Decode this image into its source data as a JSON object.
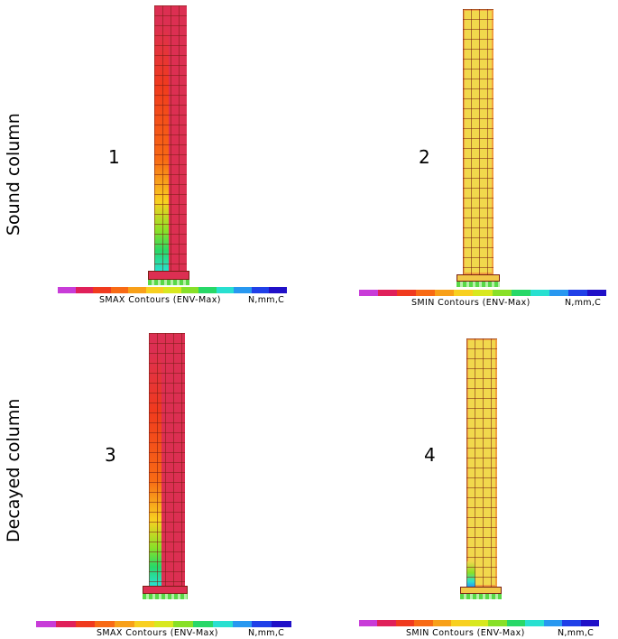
{
  "rows": {
    "sound_label": "Sound column",
    "decayed_label": "Decayed column"
  },
  "panels": [
    {
      "number": "1",
      "legend_title": "SMAX Contours (ENV-Max)",
      "units": "N,mm,C"
    },
    {
      "number": "2",
      "legend_title": "SMIN Contours (ENV-Max)",
      "units": "N,mm,C"
    },
    {
      "number": "3",
      "legend_title": "SMAX Contours (ENV-Max)",
      "units": "N,mm,C"
    },
    {
      "number": "4",
      "legend_title": "SMIN Contours (ENV-Max)",
      "units": "N,mm,C"
    }
  ],
  "colors": {
    "smax_fill": "#dc2f52",
    "smin_fill": "#f1d84c",
    "mesh_line": "#7a1e14",
    "support": "#58d848",
    "legend_scale": [
      "#c83cd8",
      "#e0205a",
      "#f03a1e",
      "#f86a14",
      "#f8a018",
      "#f8d020",
      "#d8e820",
      "#88e028",
      "#28d868",
      "#28e0d0",
      "#2898f0",
      "#2040e8",
      "#2010c8"
    ]
  }
}
